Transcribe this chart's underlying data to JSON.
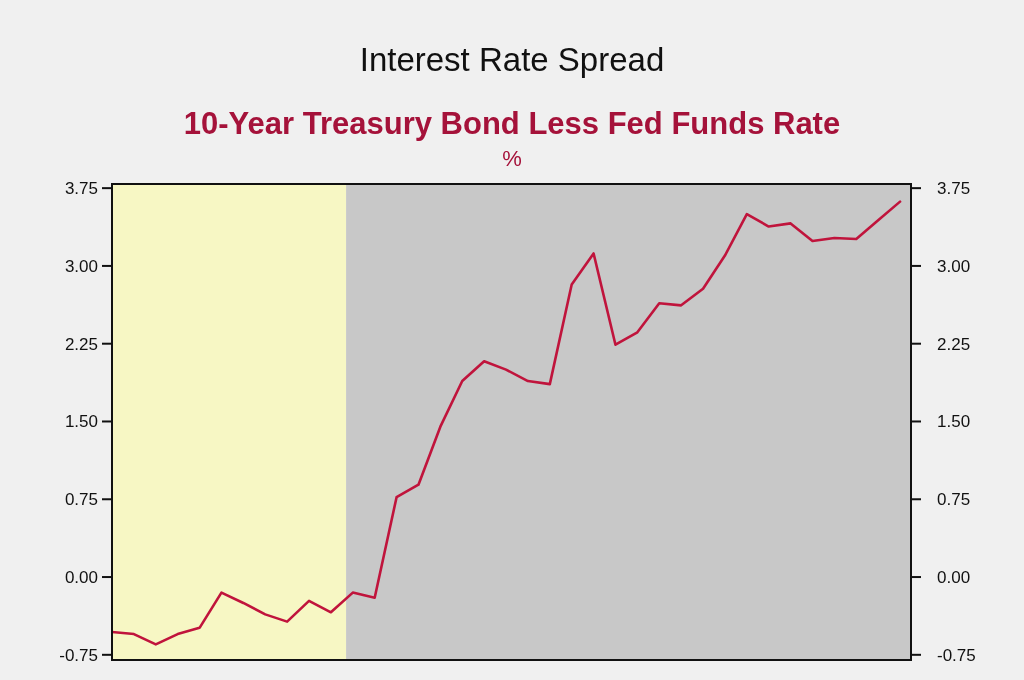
{
  "chart_data": {
    "type": "line",
    "title": "Interest Rate Spread",
    "subtitle": "10-Year Treasury Bond Less Fed Funds Rate",
    "ylabel": "%",
    "categories": [
      null,
      null,
      null,
      null,
      null,
      null,
      null,
      null,
      null,
      null,
      null,
      null,
      null,
      null,
      null,
      null,
      null,
      null,
      null,
      null,
      null,
      null,
      null,
      null,
      null,
      null,
      null,
      null,
      null,
      null,
      null,
      null,
      null,
      null,
      null,
      null,
      null
    ],
    "values": [
      -0.53,
      -0.55,
      -0.65,
      -0.55,
      -0.49,
      -0.15,
      -0.25,
      -0.36,
      -0.43,
      -0.23,
      -0.34,
      -0.15,
      -0.2,
      0.77,
      0.89,
      1.45,
      1.89,
      2.08,
      2.0,
      1.89,
      1.86,
      2.82,
      3.12,
      2.24,
      2.36,
      2.64,
      2.62,
      2.78,
      3.1,
      3.5,
      3.38,
      3.41,
      3.24,
      3.27,
      3.26,
      3.44,
      3.62
    ],
    "color": "#c0143c",
    "ylim": [
      -0.8,
      3.79
    ],
    "yticks": [
      -0.75,
      {
        "value": 0,
        "label": "0.00"
      },
      0.75,
      {
        "value": 1.5,
        "label": "1.50"
      },
      {
        "value": 2.25,
        "label": "2.25"
      },
      {
        "value": 3,
        "label": "3.00"
      },
      3.75
    ],
    "y2lim": [
      -0.8,
      3.79
    ],
    "y2ticks": [
      -0.75,
      {
        "value": 0,
        "label": "0.00"
      },
      0.75,
      {
        "value": 1.5,
        "label": "1.50"
      },
      {
        "value": 2.25,
        "label": "2.25"
      },
      {
        "value": 3,
        "label": "3.00"
      },
      3.75
    ]
  }
}
